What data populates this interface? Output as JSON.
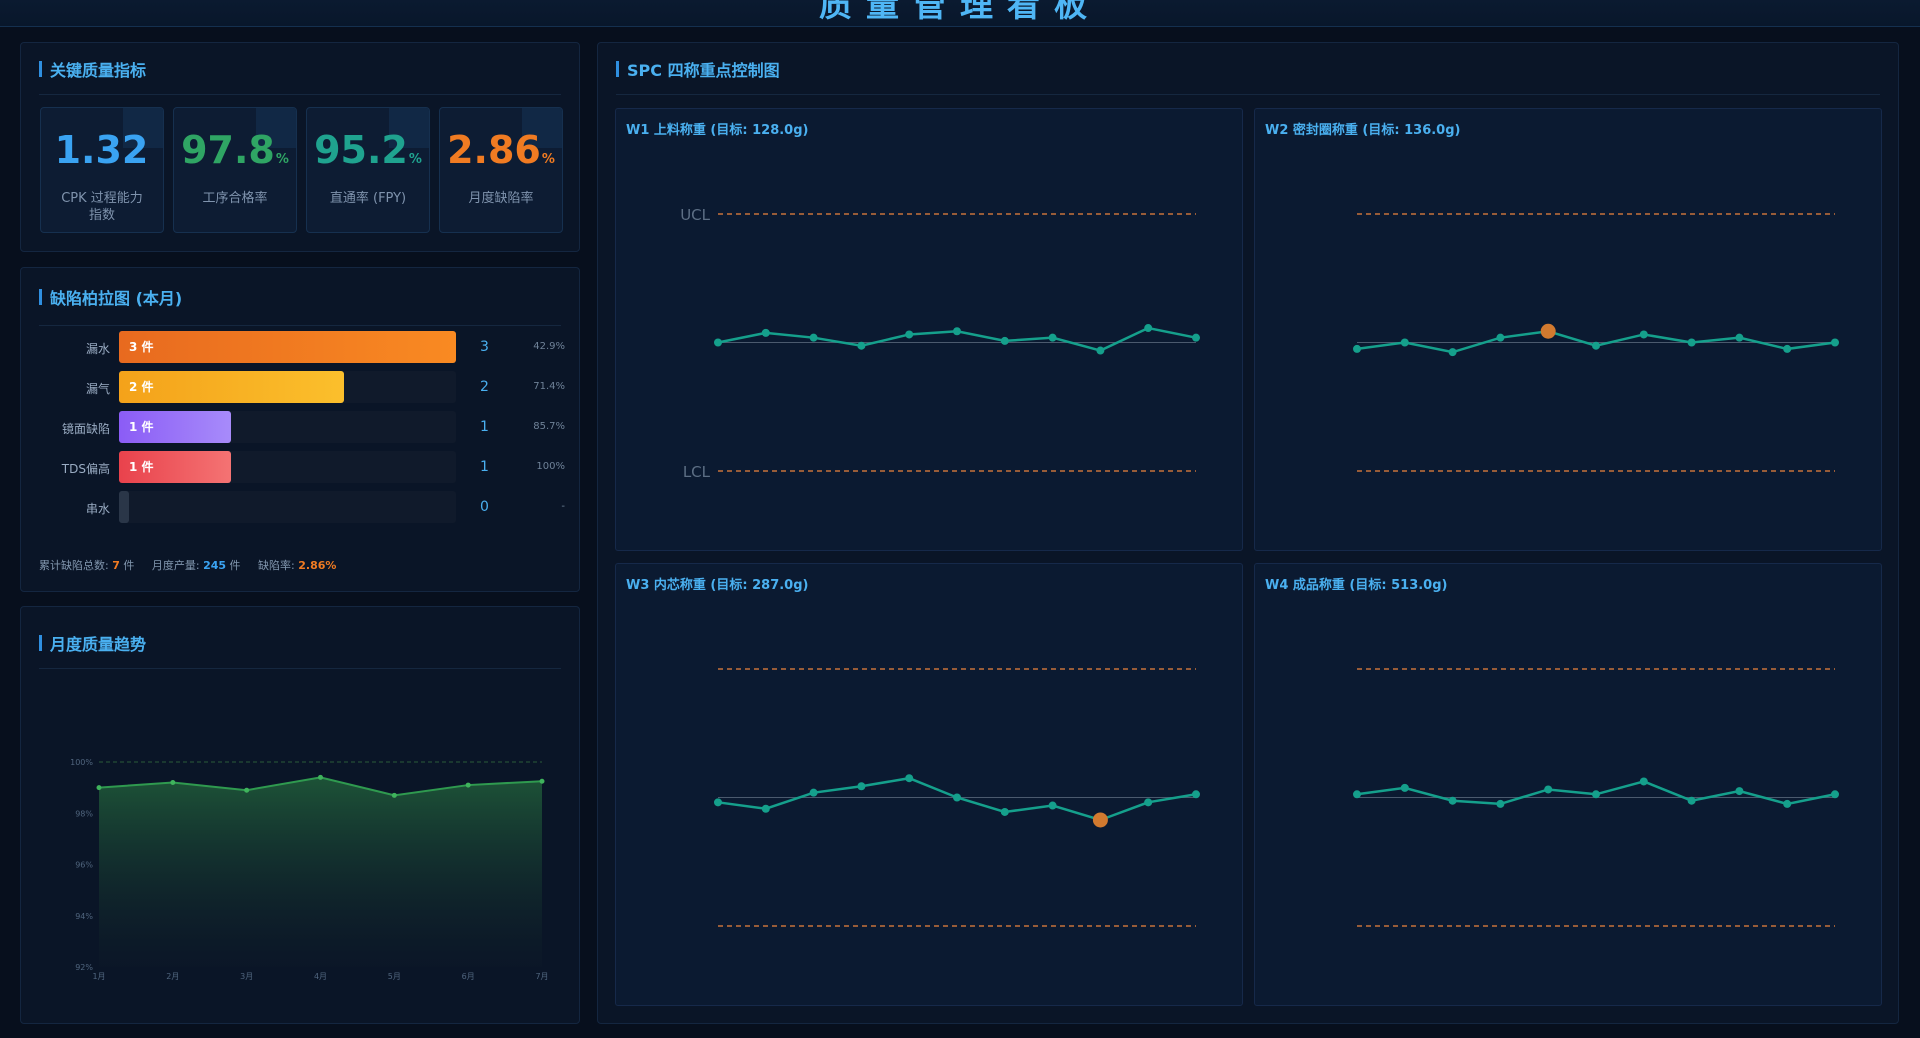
{
  "header": {
    "title": "质量管理看板"
  },
  "kpi_panel": {
    "title": "关键质量指标",
    "items": [
      {
        "value": "1.32",
        "unit": "",
        "label": "CPK 过程能力指数",
        "color": "#3aa3f2"
      },
      {
        "value": "97.8",
        "unit": "%",
        "label": "工序合格率",
        "color": "#2fa564"
      },
      {
        "value": "95.2",
        "unit": "%",
        "label": "直通率 (FPY)",
        "color": "#1fa38f"
      },
      {
        "value": "2.86",
        "unit": "%",
        "label": "月度缺陷率",
        "color": "#f07b22"
      }
    ]
  },
  "pareto": {
    "title": "缺陷柏拉图 (本月)",
    "rows": [
      {
        "name": "漏水",
        "tag": "3 件",
        "count": "3",
        "cum": "42.9%",
        "share": 1.0,
        "color_from": "#e86a1f",
        "color_to": "#f98a22"
      },
      {
        "name": "漏气",
        "tag": "2 件",
        "count": "2",
        "cum": "71.4%",
        "share": 0.667,
        "color_from": "#f4a21a",
        "color_to": "#fbbf2c"
      },
      {
        "name": "镜面缺陷",
        "tag": "1 件",
        "count": "1",
        "cum": "85.7%",
        "share": 0.333,
        "color_from": "#8b5cf6",
        "color_to": "#a78bfa"
      },
      {
        "name": "TDS偏高",
        "tag": "1 件",
        "count": "1",
        "cum": "100%",
        "share": 0.333,
        "color_from": "#e9424c",
        "color_to": "#f47373"
      },
      {
        "name": "串水",
        "tag": "",
        "count": "0",
        "cum": "-",
        "share": 0.0,
        "color_from": "#2a3648",
        "color_to": "#2a3648"
      }
    ],
    "summary": {
      "total_label": "累计缺陷总数:",
      "total_value": "7",
      "total_unit": "件",
      "output_label": "月度产量:",
      "output_value": "245",
      "output_unit": "件",
      "rate_label": "缺陷率:",
      "rate_value": "2.86%"
    }
  },
  "trend": {
    "title": "月度质量趋势",
    "chart_data": {
      "type": "area",
      "categories": [
        "1月",
        "2月",
        "3月",
        "4月",
        "5月",
        "6月",
        "7月"
      ],
      "series": [
        {
          "values": [
            99.0,
            99.2,
            98.9,
            99.4,
            98.7,
            99.1,
            99.25
          ]
        }
      ],
      "ylim": [
        92,
        100
      ],
      "yticks": [
        "92%",
        "94%",
        "96%",
        "98%",
        "100%"
      ],
      "line_color": "#2f9a4f",
      "grid": false
    }
  },
  "spc": {
    "title": "SPC 四称重点控制图",
    "ucl_label": "UCL",
    "lcl_label": "LCL",
    "charts": [
      {
        "title": "W1 上料称重 (目标: 128.0g)",
        "chart_data": {
          "type": "line",
          "values": [
            0,
            0.3,
            0.15,
            -0.1,
            0.25,
            0.35,
            0.05,
            0.15,
            -0.25,
            0.45,
            0.15
          ],
          "ucl": 4,
          "lcl": -4,
          "target": 0,
          "highlight": []
        }
      },
      {
        "title": "W2 密封圈称重 (目标: 136.0g)",
        "chart_data": {
          "type": "line",
          "values": [
            -0.2,
            0,
            -0.3,
            0.15,
            0.35,
            -0.1,
            0.25,
            0,
            0.15,
            -0.2,
            0
          ],
          "ucl": 4,
          "lcl": -4,
          "target": 0,
          "highlight": [
            4
          ]
        }
      },
      {
        "title": "W3 内芯称重 (目标: 287.0g)",
        "chart_data": {
          "type": "line",
          "values": [
            -0.15,
            -0.35,
            0.15,
            0.35,
            0.6,
            0,
            -0.45,
            -0.25,
            -0.7,
            -0.15,
            0.1
          ],
          "ucl": 4,
          "lcl": -4,
          "target": 0,
          "highlight": [
            8
          ]
        }
      },
      {
        "title": "W4 成品称重 (目标: 513.0g)",
        "chart_data": {
          "type": "line",
          "values": [
            0.1,
            0.3,
            -0.1,
            -0.2,
            0.25,
            0.1,
            0.5,
            -0.1,
            0.2,
            -0.2,
            0.1
          ],
          "ucl": 4,
          "lcl": -4,
          "target": 0,
          "highlight": []
        }
      }
    ],
    "colors": {
      "line": "#15a08c",
      "limit": "#c8733a",
      "point_alert": "#d27a2f"
    }
  }
}
